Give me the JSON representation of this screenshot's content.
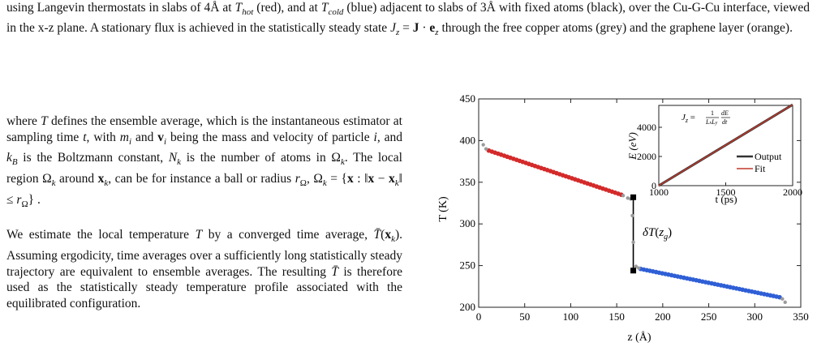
{
  "caption": {
    "text": "using Langevin thermostats in slabs of 4Å at T_hot (red), and at T_cold (blue) adjacent to slabs of 3Å with fixed atoms (black), over the Cu-G-Cu interface, viewed in the x-z plane. A stationary flux is achieved in the statistically steady state J_z = J · e_z through the free copper atoms (grey) and the graphene layer (orange)."
  },
  "body": {
    "para1": "where T defines the ensemble average, which is the instantaneous estimator at sampling time t, with m_i and v_i being the mass and velocity of particle i, and k_B is the Boltzmann constant, N_k is the number of atoms in Ω_k. The local region Ω_k around x_k, can be for instance a ball or radius r_Ω, Ω_k = {x : ‖x − x_k‖ ≤ r_Ω}.",
    "para2": "We estimate the local temperature T by a converged time average, T̄(x_k). Assuming ergodicity, time averages over a sufficiently long statistically steady trajectory are equivalent to ensemble averages. The resulting T̄ is therefore used as the statistically steady temperature profile associated with the equilibrated configuration."
  },
  "chart_data": [
    {
      "type": "scatter",
      "xlabel": "z (Å)",
      "ylabel": "T (K)",
      "xlim": [
        0,
        350
      ],
      "ylim": [
        200,
        450
      ],
      "xticks": [
        "0",
        "50",
        "100",
        "150",
        "200",
        "250",
        "300",
        "350"
      ],
      "yticks": [
        "200",
        "250",
        "300",
        "350",
        "400",
        "450"
      ],
      "annotation": "δT(z_g)",
      "series": [
        {
          "role": "hot",
          "color": "#d42a2a",
          "x_range": [
            11,
            155
          ],
          "y_range": [
            388,
            335
          ],
          "n": 44
        },
        {
          "role": "cold",
          "color": "#2f5fd6",
          "x_range": [
            176,
            327
          ],
          "y_range": [
            246,
            212
          ],
          "n": 46
        },
        {
          "role": "free",
          "color": "#9a9a9a",
          "points": [
            [
              5,
              395
            ],
            [
              8,
              390
            ],
            [
              157,
              334
            ],
            [
              162,
              331
            ],
            [
              165,
              330
            ],
            [
              167,
              310
            ],
            [
              168,
              278
            ],
            [
              171,
              249
            ],
            [
              174,
              247
            ],
            [
              330,
              210
            ],
            [
              333,
              206
            ]
          ]
        },
        {
          "role": "fixed",
          "color": "#000000",
          "points": [
            [
              168,
              332
            ],
            [
              168,
              244
            ]
          ]
        }
      ],
      "jump": {
        "x": 168,
        "y_top": 332,
        "y_bottom": 244
      }
    },
    {
      "type": "line",
      "xlabel": "t (ps)",
      "ylabel": "E (eV)",
      "xlim": [
        1000,
        2000
      ],
      "ylim": [
        0,
        5500
      ],
      "xticks": [
        "1000",
        "1500",
        "2000"
      ],
      "yticks": [
        "0",
        "2000",
        "4000"
      ],
      "annotation": "J_z = 1/(L_x L_y) dE/dt",
      "series": [
        {
          "name": "Output",
          "color": "#333333",
          "x": [
            1000,
            2000
          ],
          "y": [
            0,
            5550
          ]
        },
        {
          "name": "Fit",
          "color": "#c0392b",
          "x": [
            1000,
            2000
          ],
          "y": [
            0,
            5550
          ]
        }
      ]
    }
  ]
}
